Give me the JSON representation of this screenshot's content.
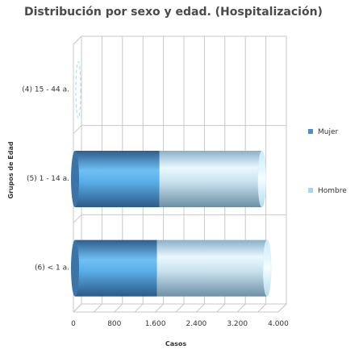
{
  "chart_data": {
    "type": "bar",
    "orientation": "horizontal",
    "style": "3d-cylinder-stacked",
    "title": "Distribución por sexo y edad. (Hospitalización)",
    "xlabel": "Casos",
    "ylabel": "Grupos de Edad",
    "categories": [
      "(4) 15 - 44 a.",
      "(5) 1 - 14 a.",
      "(6) < 1 a."
    ],
    "series": [
      {
        "name": "Mujer",
        "color": "#4a8fcc",
        "values": [
          0,
          1650,
          1600
        ]
      },
      {
        "name": "Hombre",
        "color": "#a6d4f2",
        "values": [
          0,
          2000,
          2150
        ]
      }
    ],
    "xlim": [
      0,
      4000
    ],
    "xticks": [
      0,
      800,
      1600,
      2400,
      3200,
      4000
    ],
    "xtick_labels": [
      "0",
      "800",
      "1.600",
      "2.400",
      "3.200",
      "4.000"
    ],
    "grid": true,
    "legend_position": "right"
  }
}
